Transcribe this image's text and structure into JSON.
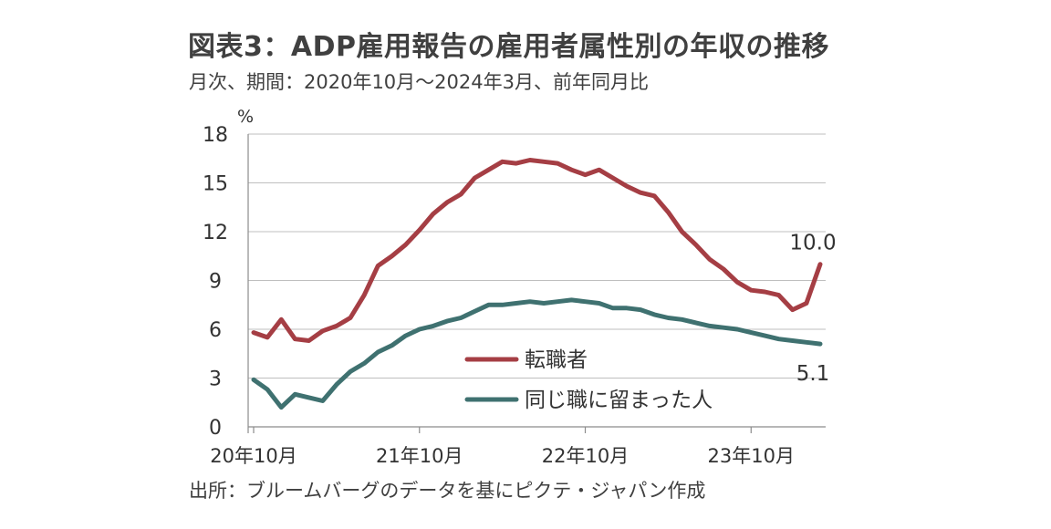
{
  "title": "図表3：ADP雇用報告の雇用者属性別の年収の推移",
  "subtitle": "月次、期間：2020年10月～2024年3月、前年同月比",
  "source": "出所：ブルームバーグのデータを基にピクテ・ジャパン作成",
  "colors": {
    "job_changers": "#a53e44",
    "job_stayers": "#3f7170",
    "gridline": "#bfbfbf",
    "axis": "#8c8c8c"
  },
  "chart_data": {
    "type": "line",
    "y_unit_label": "%",
    "ylim": [
      0,
      18
    ],
    "y_ticks": [
      0,
      3,
      6,
      9,
      12,
      15,
      18
    ],
    "grid": "horizontal",
    "legend_position": "lower-middle",
    "x_tick_labels": [
      "20年10月",
      "21年10月",
      "22年10月",
      "23年10月"
    ],
    "x_tick_indices": [
      0,
      12,
      24,
      36
    ],
    "x": [
      "2020-10",
      "2020-11",
      "2020-12",
      "2021-01",
      "2021-02",
      "2021-03",
      "2021-04",
      "2021-05",
      "2021-06",
      "2021-07",
      "2021-08",
      "2021-09",
      "2021-10",
      "2021-11",
      "2021-12",
      "2022-01",
      "2022-02",
      "2022-03",
      "2022-04",
      "2022-05",
      "2022-06",
      "2022-07",
      "2022-08",
      "2022-09",
      "2022-10",
      "2022-11",
      "2022-12",
      "2023-01",
      "2023-02",
      "2023-03",
      "2023-04",
      "2023-05",
      "2023-06",
      "2023-07",
      "2023-08",
      "2023-09",
      "2023-10",
      "2023-11",
      "2023-12",
      "2024-01",
      "2024-02",
      "2024-03"
    ],
    "series": [
      {
        "name": "転職者",
        "color_key": "job_changers",
        "values": [
          5.8,
          5.5,
          6.6,
          5.4,
          5.3,
          5.9,
          6.2,
          6.7,
          8.1,
          9.9,
          10.5,
          11.2,
          12.1,
          13.1,
          13.8,
          14.3,
          15.3,
          15.8,
          16.3,
          16.2,
          16.4,
          16.3,
          16.2,
          15.8,
          15.5,
          15.8,
          15.3,
          14.8,
          14.4,
          14.2,
          13.2,
          12.0,
          11.2,
          10.3,
          9.7,
          8.9,
          8.4,
          8.3,
          8.1,
          7.2,
          7.6,
          10.0
        ],
        "end_label": "10.0"
      },
      {
        "name": "同じ職に留まった人",
        "color_key": "job_stayers",
        "values": [
          2.9,
          2.3,
          1.2,
          2.0,
          1.8,
          1.6,
          2.6,
          3.4,
          3.9,
          4.6,
          5.0,
          5.6,
          6.0,
          6.2,
          6.5,
          6.7,
          7.1,
          7.5,
          7.5,
          7.6,
          7.7,
          7.6,
          7.7,
          7.8,
          7.7,
          7.6,
          7.3,
          7.3,
          7.2,
          6.9,
          6.7,
          6.6,
          6.4,
          6.2,
          6.1,
          6.0,
          5.8,
          5.6,
          5.4,
          5.3,
          5.2,
          5.1
        ],
        "end_label": "5.1"
      }
    ]
  }
}
